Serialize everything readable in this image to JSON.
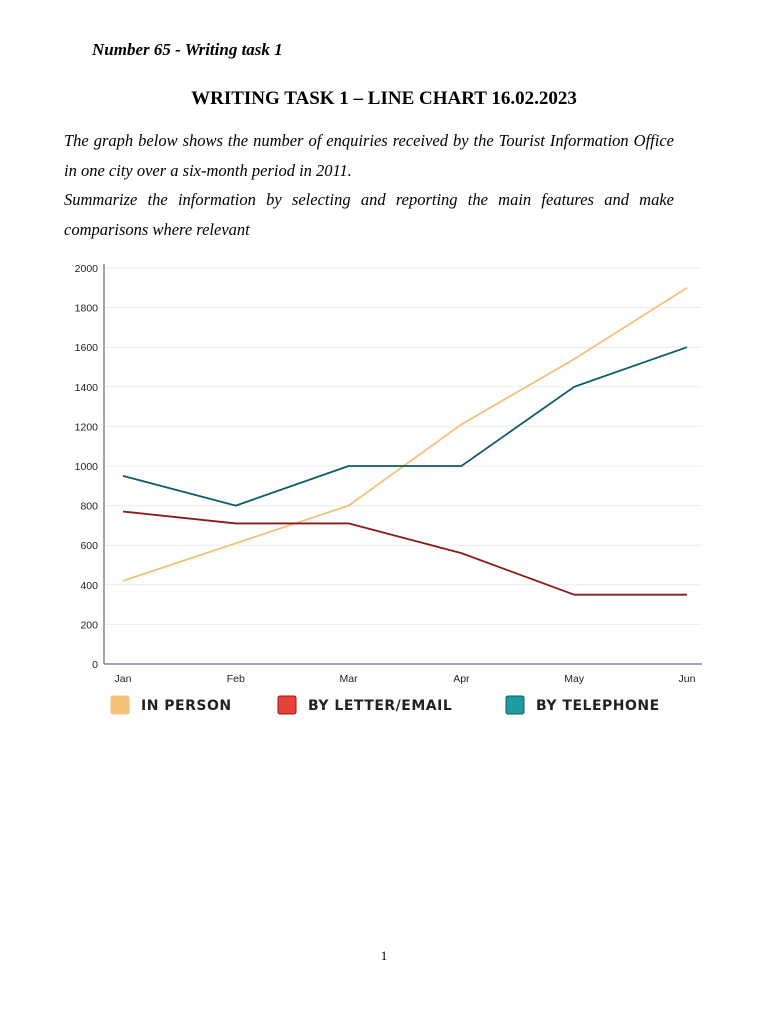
{
  "header": {
    "label": "Number 65 - Writing task 1"
  },
  "title": "WRITING TASK 1 – LINE CHART 16.02.2023",
  "prompt": {
    "line1": "The graph below shows the number of enquiries received by the Tourist Information Office in one city over a six-month period in 2011.",
    "line2": "Summarize the information by selecting and reporting the main features and make comparisons where relevant"
  },
  "chart_data": {
    "type": "line",
    "title": "",
    "xlabel": "",
    "ylabel": "",
    "categories": [
      "Jan",
      "Feb",
      "Mar",
      "Apr",
      "May",
      "Jun"
    ],
    "ylim": [
      0,
      2000
    ],
    "yticks": [
      "0",
      "200",
      "400",
      "600",
      "800",
      "1000",
      "1200",
      "1400",
      "1600",
      "1800",
      "2000"
    ],
    "grid": true,
    "legend_position": "bottom",
    "series": [
      {
        "name": "IN PERSON",
        "color": "#f5c07a",
        "values": [
          420,
          610,
          800,
          1210,
          1540,
          1900
        ]
      },
      {
        "name": "BY LETTER/EMAIL",
        "color": "#8b1a1a",
        "legend_color": "#e8413c",
        "values": [
          770,
          710,
          710,
          560,
          350,
          350
        ]
      },
      {
        "name": "BY TELEPHONE",
        "color": "#0d5c66",
        "legend_color": "#1e9aa0",
        "values": [
          950,
          800,
          1000,
          1000,
          1400,
          1600
        ]
      }
    ]
  },
  "footer": {
    "page_number": "1"
  }
}
